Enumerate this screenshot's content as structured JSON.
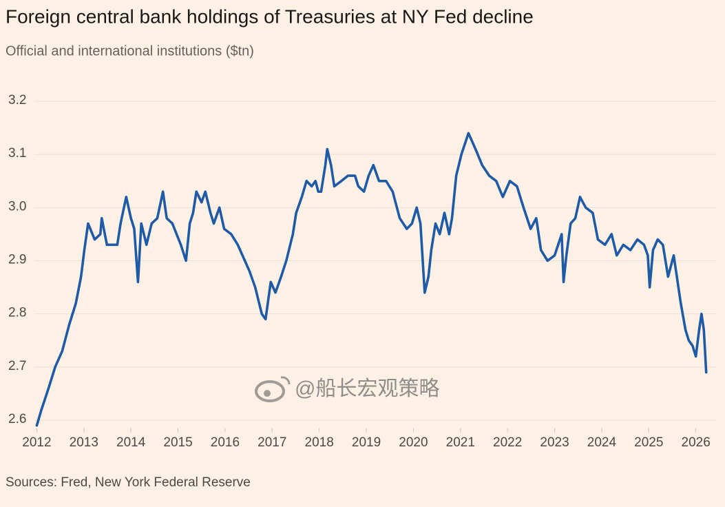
{
  "chart_data": {
    "type": "line",
    "title": "Foreign central bank holdings of Treasuries at NY Fed decline",
    "subtitle": "Official and international institutions ($tn)",
    "source": "Sources: Fred, New York Federal Reserve",
    "watermark": "@船长宏观策略",
    "xlim": [
      2011.95,
      2026.4
    ],
    "xticks": [
      2012,
      2013,
      2014,
      2015,
      2016,
      2017,
      2018,
      2019,
      2020,
      2021,
      2022,
      2023,
      2024,
      2025,
      2026
    ],
    "ylim": [
      2.58,
      3.22
    ],
    "yticks": [
      2.6,
      2.7,
      2.8,
      2.9,
      {
        "value": 3,
        "label": "3.0"
      },
      3.1,
      3.2
    ],
    "grid": true,
    "series": [
      {
        "color": "#1f5aa6",
        "x": [
          2012.0,
          2012.1,
          2012.25,
          2012.39,
          2012.54,
          2012.69,
          2012.83,
          2012.94,
          2013.01,
          2013.09,
          2013.23,
          2013.35,
          2013.38,
          2013.49,
          2013.71,
          2013.78,
          2013.9,
          2014.0,
          2014.07,
          2014.15,
          2014.22,
          2014.33,
          2014.44,
          2014.56,
          2014.68,
          2014.76,
          2014.88,
          2015.06,
          2015.17,
          2015.25,
          2015.32,
          2015.39,
          2015.5,
          2015.58,
          2015.69,
          2015.76,
          2015.88,
          2015.98,
          2016.13,
          2016.27,
          2016.37,
          2016.52,
          2016.64,
          2016.78,
          2016.86,
          2016.97,
          2017.07,
          2017.19,
          2017.3,
          2017.44,
          2017.51,
          2017.63,
          2017.73,
          2017.84,
          2017.92,
          2017.98,
          2018.04,
          2018.13,
          2018.17,
          2018.25,
          2018.32,
          2018.47,
          2018.61,
          2018.76,
          2018.83,
          2018.95,
          2019.05,
          2019.15,
          2019.27,
          2019.42,
          2019.56,
          2019.71,
          2019.86,
          2019.97,
          2020.07,
          2020.15,
          2020.24,
          2020.32,
          2020.38,
          2020.47,
          2020.56,
          2020.66,
          2020.76,
          2020.82,
          2020.91,
          2021.02,
          2021.17,
          2021.32,
          2021.46,
          2021.61,
          2021.76,
          2021.9,
          2022.05,
          2022.2,
          2022.34,
          2022.49,
          2022.61,
          2022.71,
          2022.85,
          2023.0,
          2023.15,
          2023.19,
          2023.25,
          2023.34,
          2023.44,
          2023.54,
          2023.66,
          2023.81,
          2023.92,
          2024.07,
          2024.21,
          2024.32,
          2024.46,
          2024.61,
          2024.76,
          2024.9,
          2024.98,
          2025.02,
          2025.09,
          2025.19,
          2025.3,
          2025.41,
          2025.53,
          2025.68,
          2025.78,
          2025.85,
          2025.93,
          2026.0,
          2026.07,
          2026.12,
          2026.17,
          2026.22
        ],
        "values": [
          2.59,
          2.62,
          2.66,
          2.7,
          2.73,
          2.78,
          2.82,
          2.87,
          2.92,
          2.97,
          2.94,
          2.95,
          2.98,
          2.93,
          2.93,
          2.97,
          3.02,
          2.98,
          2.96,
          2.86,
          2.97,
          2.93,
          2.97,
          2.98,
          3.03,
          2.98,
          2.97,
          2.93,
          2.9,
          2.97,
          2.99,
          3.03,
          3.01,
          3.03,
          2.99,
          2.97,
          3.0,
          2.96,
          2.95,
          2.93,
          2.91,
          2.88,
          2.85,
          2.8,
          2.79,
          2.86,
          2.84,
          2.87,
          2.9,
          2.95,
          2.99,
          3.02,
          3.05,
          3.04,
          3.05,
          3.03,
          3.03,
          3.08,
          3.11,
          3.08,
          3.04,
          3.05,
          3.06,
          3.06,
          3.04,
          3.03,
          3.06,
          3.08,
          3.05,
          3.05,
          3.03,
          2.98,
          2.96,
          2.97,
          3.0,
          2.97,
          2.84,
          2.87,
          2.92,
          2.97,
          2.95,
          2.99,
          2.95,
          2.98,
          3.06,
          3.1,
          3.14,
          3.11,
          3.08,
          3.06,
          3.05,
          3.02,
          3.05,
          3.04,
          3.0,
          2.96,
          2.98,
          2.92,
          2.9,
          2.91,
          2.95,
          2.86,
          2.91,
          2.97,
          2.98,
          3.02,
          3.0,
          2.99,
          2.94,
          2.93,
          2.95,
          2.91,
          2.93,
          2.92,
          2.94,
          2.93,
          2.91,
          2.85,
          2.92,
          2.94,
          2.93,
          2.87,
          2.91,
          2.82,
          2.77,
          2.75,
          2.74,
          2.72,
          2.77,
          2.8,
          2.77,
          2.69
        ]
      }
    ]
  }
}
